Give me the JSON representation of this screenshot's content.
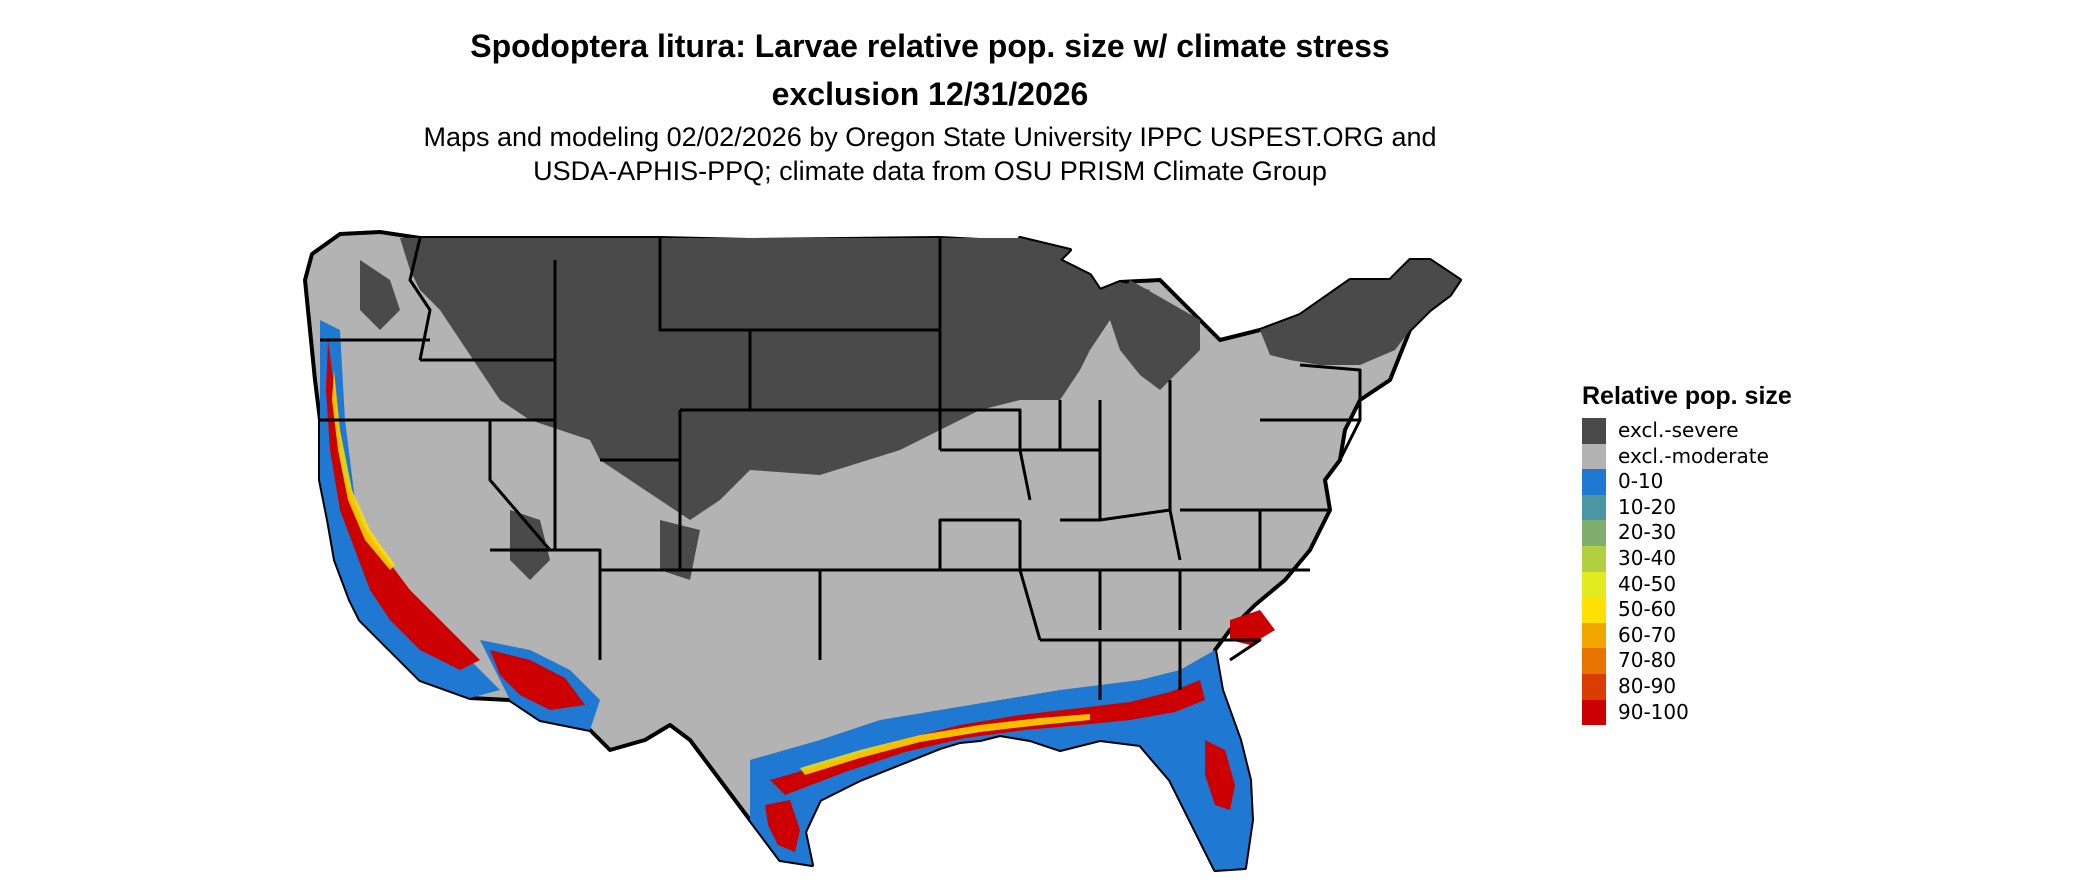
{
  "title": {
    "line1": "Spodoptera litura: Larvae relative pop. size w/ climate stress",
    "line2": "exclusion 12/31/2026"
  },
  "subtitle": {
    "line1": "Maps and modeling 02/02/2026 by Oregon State University IPPC USPEST.ORG and",
    "line2": "USDA-APHIS-PPQ; climate data from OSU PRISM Climate Group"
  },
  "legend": {
    "title": "Relative pop. size",
    "items": [
      {
        "label": "excl.-severe",
        "color": "#4a4a4a"
      },
      {
        "label": "excl.-moderate",
        "color": "#b3b3b3"
      },
      {
        "label": "0-10",
        "color": "#1f78d1"
      },
      {
        "label": "10-20",
        "color": "#4a96a3"
      },
      {
        "label": "20-30",
        "color": "#7fae6e"
      },
      {
        "label": "30-40",
        "color": "#b2cf3f"
      },
      {
        "label": "40-50",
        "color": "#e3ea1f"
      },
      {
        "label": "50-60",
        "color": "#ffe000"
      },
      {
        "label": "60-70",
        "color": "#f2a600"
      },
      {
        "label": "70-80",
        "color": "#e87400"
      },
      {
        "label": "80-90",
        "color": "#db3c00"
      },
      {
        "label": "90-100",
        "color": "#cc0000"
      }
    ]
  }
}
